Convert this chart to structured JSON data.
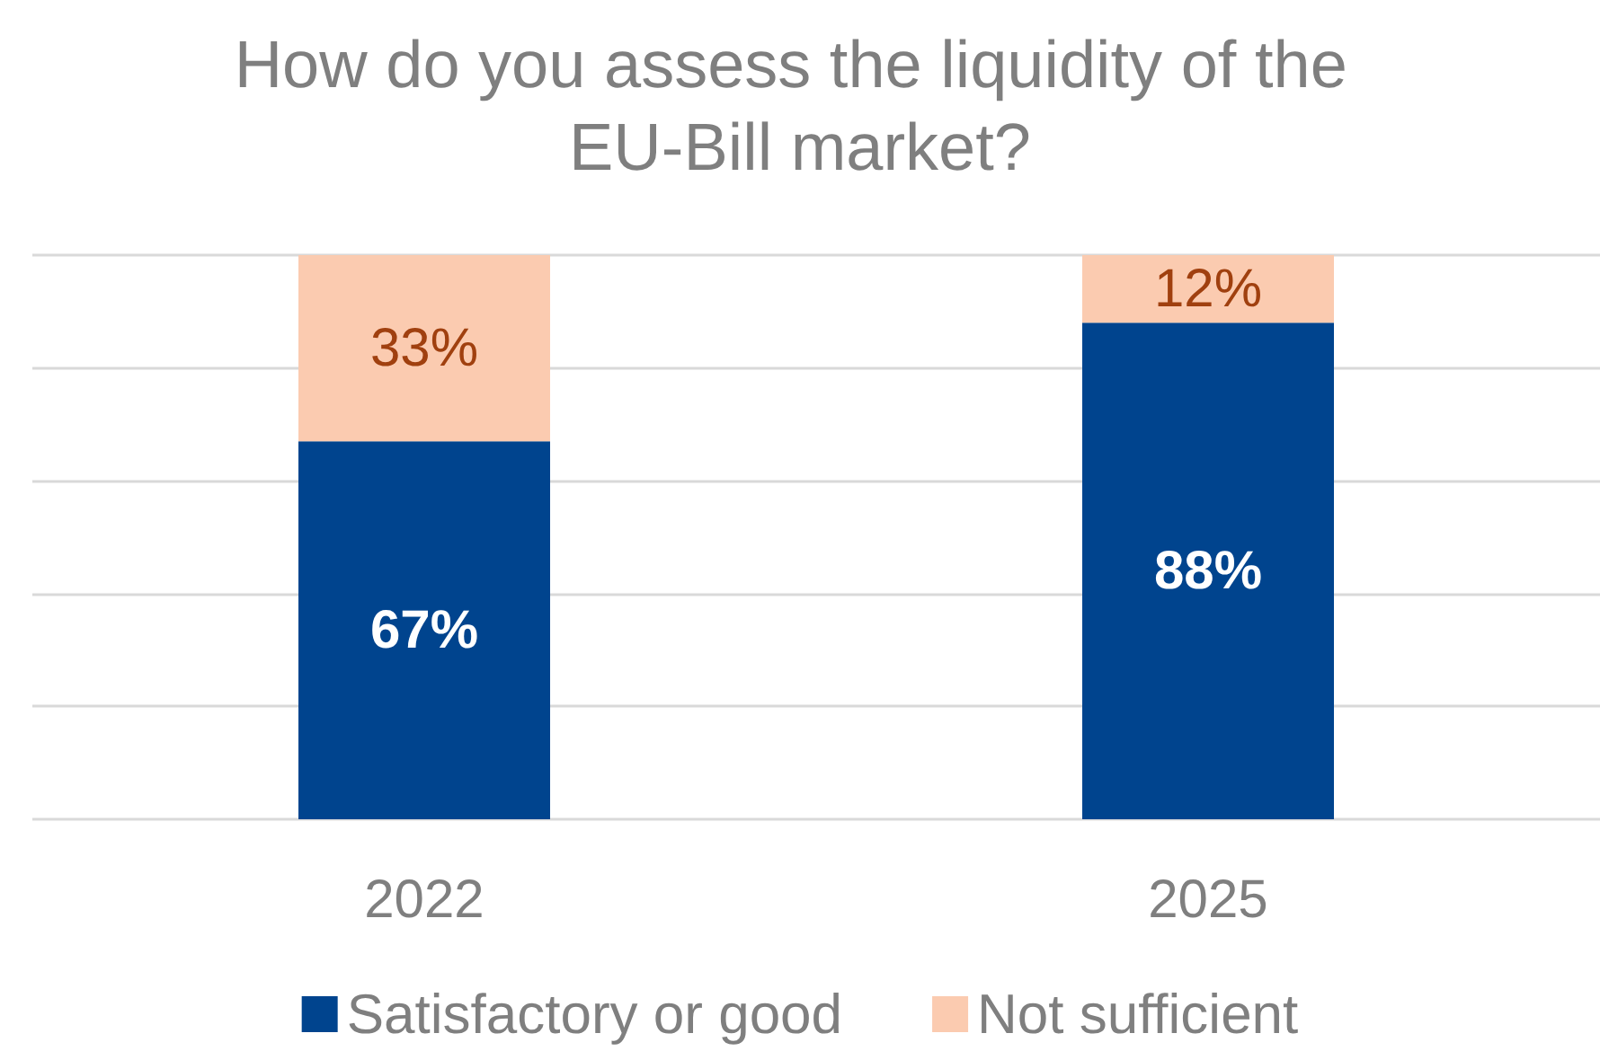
{
  "chart_data": {
    "type": "bar",
    "title": "How do you assess the liquidity of the EU-Bill market?",
    "categories": [
      "2022",
      "2025"
    ],
    "stacked": true,
    "series": [
      {
        "name": "Satisfactory or good",
        "color": "#00448e",
        "values": [
          67,
          88
        ],
        "value_labels": [
          "67%",
          "88%"
        ]
      },
      {
        "name": "Not sufficient",
        "color": "#fbcbb0",
        "values": [
          33,
          12
        ],
        "value_labels": [
          "33%",
          "12%"
        ]
      }
    ],
    "ylim": [
      0,
      100
    ],
    "yticks": [
      {
        "value": 0,
        "label": null
      },
      {
        "value": 20,
        "label": null
      },
      {
        "value": 40,
        "label": null
      },
      {
        "value": 60,
        "label": null
      },
      {
        "value": 80,
        "label": null
      },
      {
        "value": 100,
        "label": null
      }
    ],
    "grid": "y",
    "legend": "bottom"
  }
}
